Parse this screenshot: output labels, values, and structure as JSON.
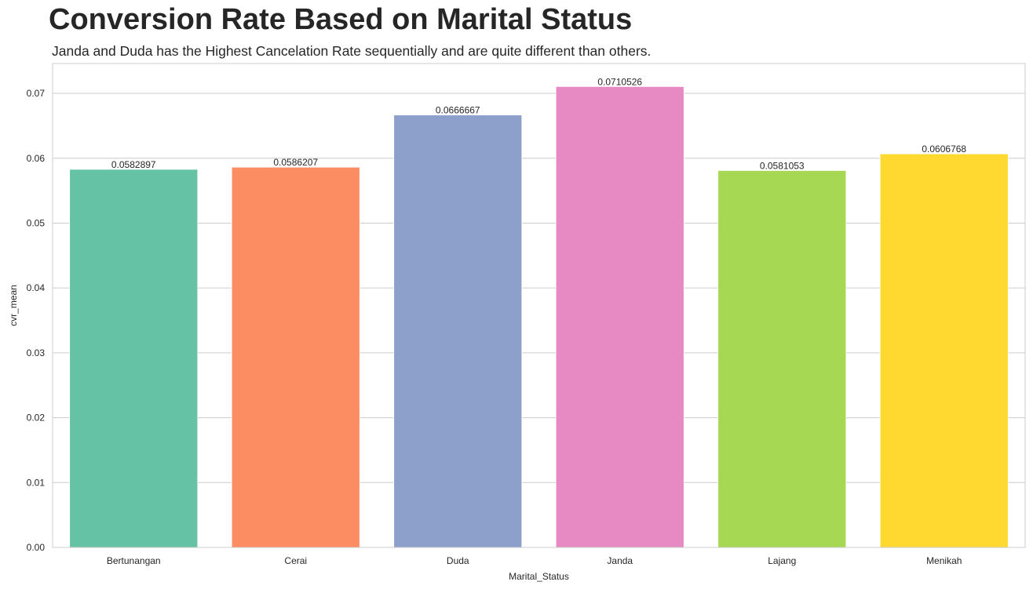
{
  "chart_data": {
    "type": "bar",
    "title": "Conversion Rate Based on Marital Status",
    "subtitle": "Janda and Duda has the Highest Cancelation Rate sequentially and are quite different than others.",
    "xlabel": "Marital_Status",
    "ylabel": "cvr_mean",
    "categories": [
      "Bertunangan",
      "Cerai",
      "Duda",
      "Janda",
      "Lajang",
      "Menikah"
    ],
    "values": [
      0.0582897,
      0.0586207,
      0.0666667,
      0.0710526,
      0.0581053,
      0.0606768
    ],
    "data_labels": [
      "0.0582897",
      "0.0586207",
      "0.0666667",
      "0.0710526",
      "0.0581053",
      "0.0606768"
    ],
    "colors": [
      "#66c2a5",
      "#fc8d62",
      "#8da0cb",
      "#e78ac3",
      "#a6d854",
      "#ffd92f"
    ],
    "yticks": [
      "0.00",
      "0.01",
      "0.02",
      "0.03",
      "0.04",
      "0.05",
      "0.06",
      "0.07"
    ],
    "ylim": [
      0,
      0.0746
    ],
    "grid": true,
    "legend": "none"
  }
}
